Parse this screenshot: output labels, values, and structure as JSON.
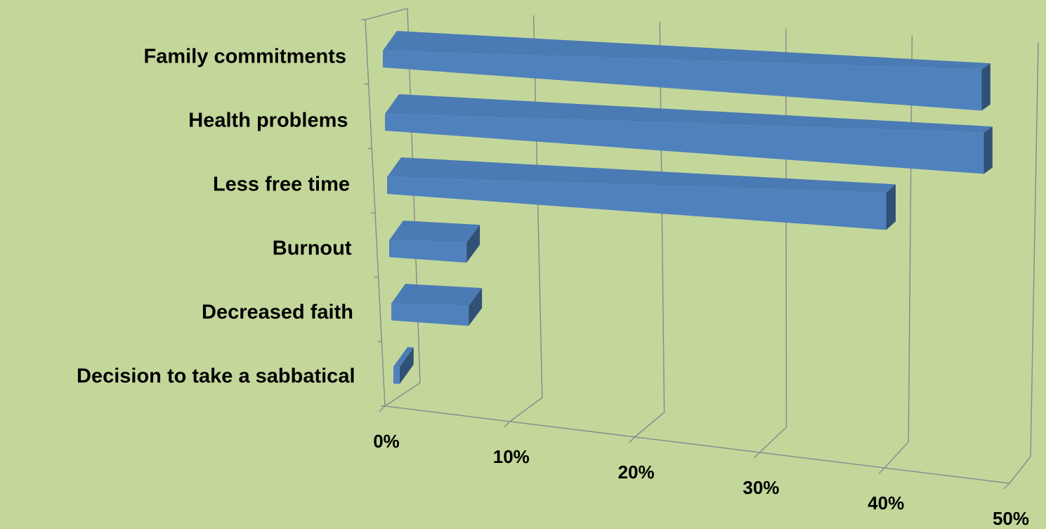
{
  "chart_data": {
    "type": "bar3d",
    "categories": [
      "Family commitments",
      "Health problems",
      "Less free time",
      "Burnout",
      "Decreased faith",
      "Decision to take a sabbatical"
    ],
    "values": [
      48,
      48,
      40,
      6.2,
      6.2,
      0.5
    ],
    "color": "#4f81bd",
    "xlim": [
      0,
      50
    ],
    "xticks": [
      {
        "value": 0,
        "label": "0%"
      },
      {
        "value": 10,
        "label": "10%"
      },
      {
        "value": 20,
        "label": "20%"
      },
      {
        "value": 30,
        "label": "30%"
      },
      {
        "value": 40,
        "label": "40%"
      },
      {
        "value": 50,
        "label": "50%"
      }
    ],
    "grid": true
  }
}
